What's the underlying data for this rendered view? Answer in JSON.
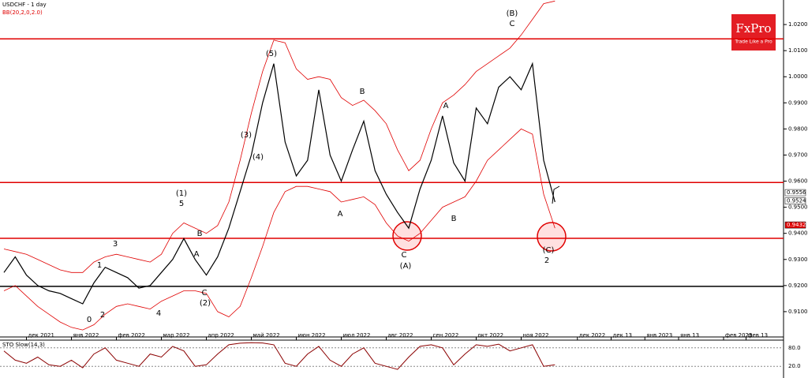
{
  "chart_data": {
    "type": "line",
    "title": "USDCHF - 1 day",
    "indicator_label": "BB(20,2,0,2.0)",
    "logo": {
      "name": "FxPro",
      "tagline": "Trade Like a Pro"
    },
    "categories": [
      null,
      null,
      "дек 2021",
      null,
      null,
      null,
      "янв 2022",
      null,
      null,
      null,
      "фев 2022",
      null,
      null,
      null,
      "мар 2022",
      null,
      null,
      null,
      "апр 2022",
      null,
      null,
      null,
      "май 2022",
      null,
      null,
      null,
      "июн 2022",
      null,
      null,
      null,
      "июл 2022",
      null,
      null,
      null,
      "авг 2022",
      null,
      null,
      null,
      "сен 2022",
      null,
      null,
      null,
      "окт 2022",
      null,
      null,
      null,
      "ноя 2022",
      null,
      null,
      null,
      null,
      "дек 2022",
      null,
      null,
      "дек 13",
      null,
      null,
      "янв 2023",
      null,
      null,
      "янв 13",
      null,
      null,
      null,
      "фев 2023",
      null,
      "фев 13",
      null,
      null,
      null
    ],
    "series": [
      {
        "name": "USDCHF",
        "color": "#000000",
        "values": [
          0.925,
          0.931,
          0.924,
          0.92,
          0.918,
          0.917,
          0.915,
          0.913,
          0.921,
          0.927,
          0.925,
          0.923,
          0.919,
          0.92,
          0.925,
          0.93,
          0.938,
          0.93,
          0.924,
          0.931,
          0.942,
          0.956,
          0.97,
          0.99,
          1.005,
          0.975,
          0.962,
          0.968,
          0.995,
          0.97,
          0.96,
          0.972,
          0.983,
          0.964,
          0.955,
          0.948,
          0.942,
          0.957,
          0.968,
          0.985,
          0.967,
          0.96,
          0.988,
          0.982,
          0.996,
          1.0,
          0.995,
          1.005,
          0.968,
          0.952,
          null,
          null,
          null,
          null,
          null,
          null,
          null,
          null,
          null,
          null,
          null,
          null,
          null,
          null,
          null,
          null,
          null,
          null,
          null,
          null
        ]
      },
      {
        "name": "BB upper",
        "color": "#e00000",
        "values": [
          0.934,
          0.933,
          0.932,
          0.93,
          0.928,
          0.926,
          0.925,
          0.925,
          0.929,
          0.931,
          0.932,
          0.931,
          0.93,
          0.929,
          0.932,
          0.94,
          0.944,
          0.942,
          0.94,
          0.943,
          0.952,
          0.968,
          0.986,
          1.002,
          1.014,
          1.013,
          1.003,
          0.999,
          1.0,
          0.999,
          0.992,
          0.989,
          0.991,
          0.987,
          0.982,
          0.972,
          0.964,
          0.968,
          0.98,
          0.99,
          0.993,
          0.997,
          1.002,
          1.005,
          1.008,
          1.011,
          1.016,
          1.022,
          1.028,
          1.029,
          null,
          null,
          null,
          null,
          null,
          null,
          null,
          null,
          null,
          null,
          null,
          null,
          null,
          null,
          null,
          null,
          null,
          null,
          null,
          null
        ]
      },
      {
        "name": "BB lower",
        "color": "#e00000",
        "values": [
          0.918,
          0.92,
          0.916,
          0.912,
          0.909,
          0.906,
          0.904,
          0.903,
          0.905,
          0.909,
          0.912,
          0.913,
          0.912,
          0.911,
          0.914,
          0.916,
          0.918,
          0.918,
          0.917,
          0.91,
          0.908,
          0.912,
          0.923,
          0.935,
          0.948,
          0.956,
          0.958,
          0.958,
          0.957,
          0.956,
          0.952,
          0.953,
          0.954,
          0.951,
          0.944,
          0.939,
          0.937,
          0.94,
          0.945,
          0.95,
          0.952,
          0.954,
          0.96,
          0.968,
          0.972,
          0.976,
          0.98,
          0.978,
          0.955,
          0.942,
          null,
          null,
          null,
          null,
          null,
          null,
          null,
          null,
          null,
          null,
          null,
          null,
          null,
          null,
          null,
          null,
          null,
          null,
          null,
          null
        ]
      }
    ],
    "ylim": [
      0.9003,
      1.0294
    ],
    "yticks": [
      {
        "value": 0.91,
        "label": "0.9100"
      },
      {
        "value": 0.92,
        "label": "0.9200"
      },
      {
        "value": 0.93,
        "label": "0.9300"
      },
      {
        "value": 0.94,
        "label": "0.9400"
      },
      {
        "value": 0.95,
        "label": "0.9500"
      },
      {
        "value": 0.96,
        "label": "0.9600"
      },
      {
        "value": 0.97,
        "label": "0.9700"
      },
      {
        "value": 0.98,
        "label": "0.9800"
      },
      {
        "value": 0.99,
        "label": "0.9900"
      },
      {
        "value": 1.0,
        "label": "1.0000"
      },
      {
        "value": 1.01,
        "label": "1.0100"
      },
      {
        "value": 1.02,
        "label": "1.0200"
      }
    ],
    "levels": [
      {
        "value": 1.0145,
        "color": "#e00000"
      },
      {
        "value": 0.9595,
        "color": "#e00000"
      },
      {
        "value": 0.9381,
        "color": "#e00000"
      },
      {
        "value": 0.9197,
        "color": "#000000"
      }
    ],
    "price_labels": [
      {
        "value": 0.9556,
        "label": "0.9556"
      },
      {
        "value": 0.9524,
        "label": "0.9524"
      },
      {
        "value": 0.9432,
        "label": "0.9432"
      }
    ],
    "wave_labels": [
      "(B)",
      "C",
      "(1)",
      "5",
      "B",
      "A",
      "C",
      "(2)",
      "3",
      "1",
      "2",
      "0",
      "4",
      "(3)",
      "(4)",
      "(5)",
      "A",
      "B",
      "A",
      "B",
      "C",
      "(A)",
      "(C)",
      "2"
    ],
    "oscillator": {
      "title": "STO Slow(14,3)",
      "color": "#8b0000",
      "values": [
        70,
        40,
        30,
        50,
        25,
        20,
        40,
        15,
        60,
        80,
        40,
        30,
        20,
        60,
        50,
        85,
        70,
        20,
        25,
        60,
        90,
        95,
        97,
        96,
        90,
        30,
        20,
        60,
        85,
        40,
        20,
        60,
        80,
        30,
        20,
        10,
        50,
        85,
        90,
        80,
        25,
        60,
        90,
        85,
        92,
        70,
        80,
        90,
        20,
        25,
        null,
        null,
        null,
        null,
        null,
        null,
        null,
        null,
        null,
        null,
        null,
        null,
        null,
        null,
        null,
        null,
        null,
        null,
        null,
        null
      ],
      "ylim": [
        0,
        100
      ],
      "yticks": [
        {
          "value": 20,
          "label": "20.0"
        },
        {
          "value": 80,
          "label": "80.0"
        }
      ]
    }
  }
}
